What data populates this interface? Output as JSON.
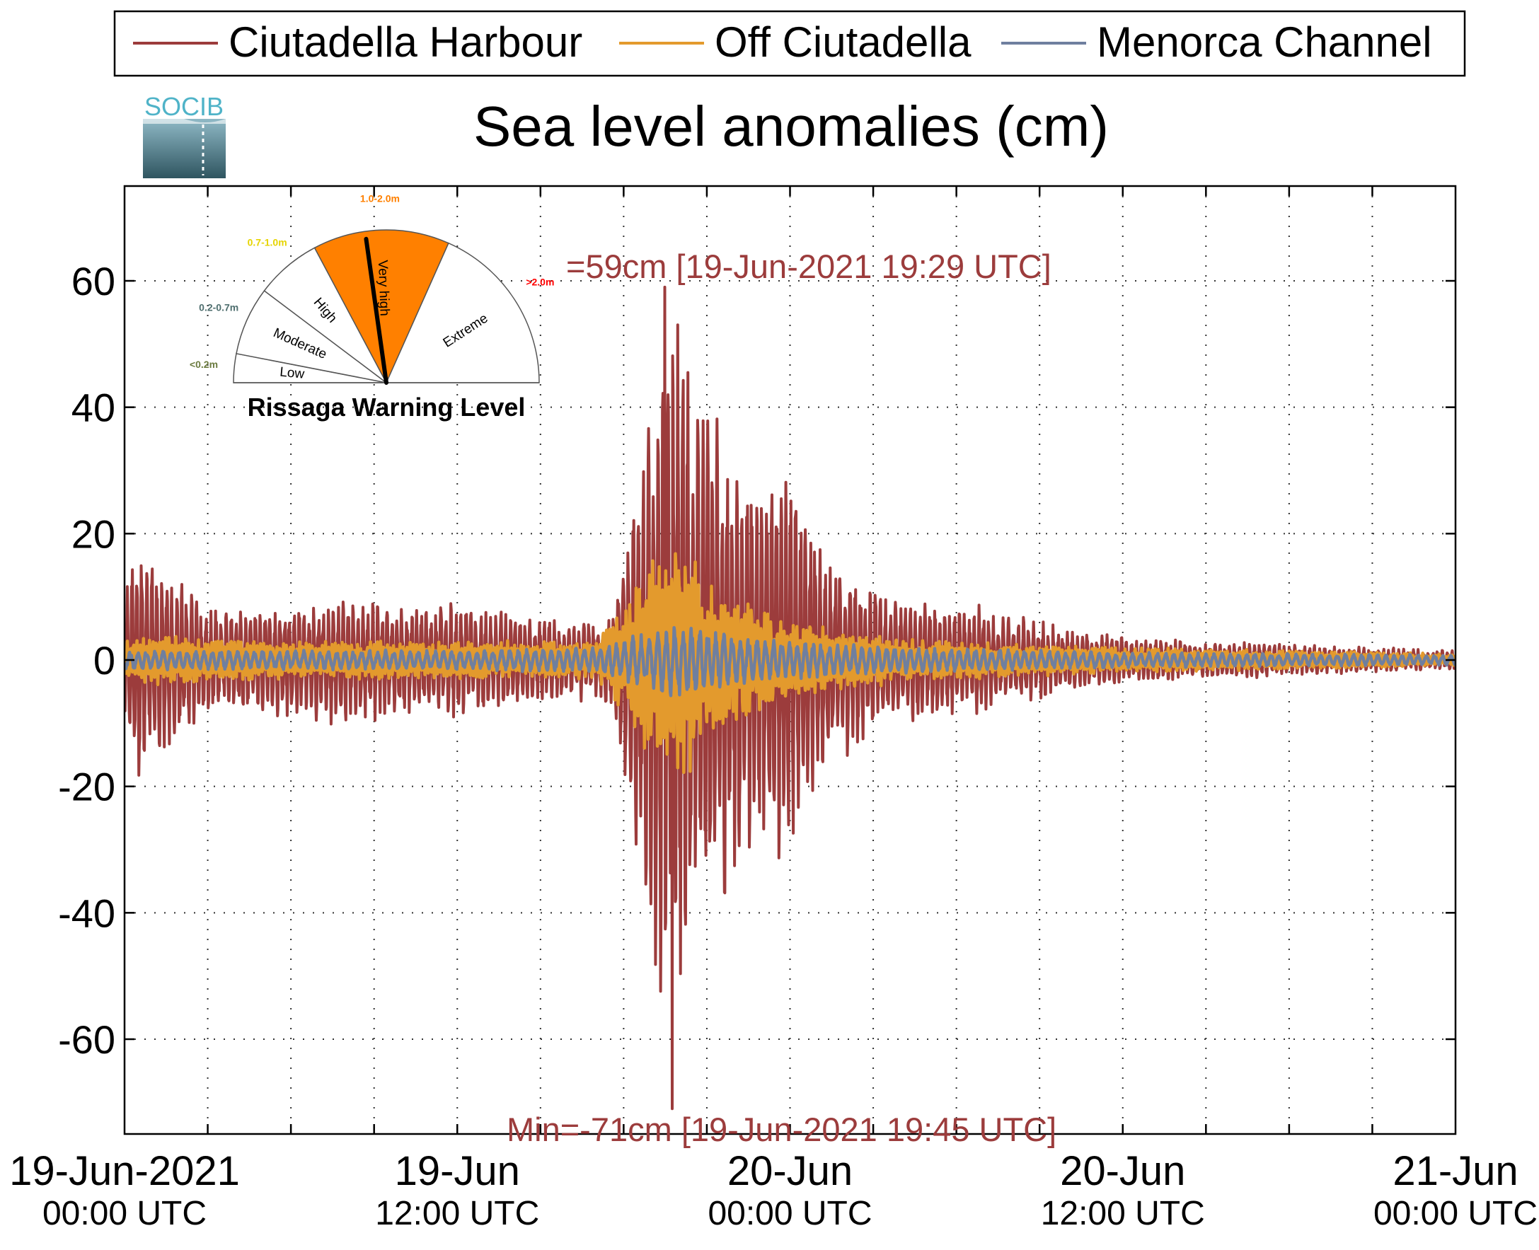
{
  "chart_data": {
    "type": "line",
    "title": "Sea level anomalies (cm)",
    "logo_text": "SOCIB",
    "legend": {
      "placement": "top",
      "entries": [
        "Ciutadella Harbour",
        "Off Ciutadella",
        "Menorca Channel"
      ]
    },
    "ylim": [
      -75,
      75
    ],
    "yticks": [
      60,
      40,
      20,
      0,
      -20,
      -40,
      -60
    ],
    "ytick_labels": [
      "60",
      "40",
      "20",
      "0",
      "-20",
      "-40",
      "-60"
    ],
    "xlim_hours": [
      0,
      48
    ],
    "grid": true,
    "xtick_labels": [
      {
        "date": "19-Jun-2021",
        "time": "00:00 UTC"
      },
      {
        "date": "19-Jun",
        "time": "12:00 UTC"
      },
      {
        "date": "20-Jun",
        "time": "00:00 UTC"
      },
      {
        "date": "20-Jun",
        "time": "12:00 UTC"
      },
      {
        "date": "21-Jun",
        "time": "00:00 UTC"
      }
    ],
    "annotations": {
      "max": "=59cm [19-Jun-2021 19:29 UTC]",
      "min": "Min=-71cm [19-Jun-2021 19:45 UTC]"
    },
    "series": [
      {
        "name": "Ciutadella Harbour",
        "color": "#9c3c3c",
        "amplitude_envelope_cm": [
          [
            0,
            10
          ],
          [
            0.3,
            20
          ],
          [
            1.5,
            15
          ],
          [
            3,
            8
          ],
          [
            6,
            9
          ],
          [
            8,
            10
          ],
          [
            10,
            9
          ],
          [
            12,
            9
          ],
          [
            14,
            7
          ],
          [
            16,
            6
          ],
          [
            17.5,
            7
          ],
          [
            18.2,
            25
          ],
          [
            18.8,
            45
          ],
          [
            19.5,
            60
          ],
          [
            20.5,
            50
          ],
          [
            21.5,
            42
          ],
          [
            22.5,
            33
          ],
          [
            24,
            30
          ],
          [
            25.5,
            18
          ],
          [
            27,
            12
          ],
          [
            28.5,
            10
          ],
          [
            30,
            9
          ],
          [
            32,
            7
          ],
          [
            34,
            5
          ],
          [
            36,
            4
          ],
          [
            39,
            3
          ],
          [
            42,
            2.5
          ],
          [
            45,
            2
          ],
          [
            48,
            1.5
          ]
        ],
        "max": {
          "hour": 19.48,
          "value": 59
        },
        "min": {
          "hour": 19.75,
          "value": -71
        }
      },
      {
        "name": "Off Ciutadella",
        "color": "#e39a2d",
        "amplitude_envelope_cm": [
          [
            0,
            3
          ],
          [
            1,
            4
          ],
          [
            6,
            3
          ],
          [
            12,
            3
          ],
          [
            17,
            3
          ],
          [
            18.2,
            10
          ],
          [
            19,
            16
          ],
          [
            20,
            20
          ],
          [
            21,
            12
          ],
          [
            22,
            10
          ],
          [
            24,
            6
          ],
          [
            27,
            4
          ],
          [
            30,
            3
          ],
          [
            36,
            2
          ],
          [
            42,
            1.5
          ],
          [
            48,
            1
          ]
        ]
      },
      {
        "name": "Menorca Channel",
        "color": "#6f7f9f",
        "amplitude_envelope_cm": [
          [
            0,
            1.5
          ],
          [
            6,
            1.5
          ],
          [
            12,
            1.5
          ],
          [
            17,
            2
          ],
          [
            18.5,
            4
          ],
          [
            20,
            6
          ],
          [
            21,
            5
          ],
          [
            22,
            4
          ],
          [
            24,
            3
          ],
          [
            28,
            2
          ],
          [
            36,
            1.2
          ],
          [
            48,
            0.8
          ]
        ]
      }
    ],
    "rissaga_gauge": {
      "title": "Rissaga Warning Level",
      "current_level": "Very high",
      "levels": [
        {
          "name": "Low",
          "range": "<0.2m",
          "color": "#ffffff",
          "range_color": "#6b7b3f"
        },
        {
          "name": "Moderate",
          "range": "0.2-0.7m",
          "color": "#ffffff",
          "range_color": "#4f6f6f"
        },
        {
          "name": "High",
          "range": "0.7-1.0m",
          "color": "#ffffff",
          "range_color": "#e6d400"
        },
        {
          "name": "Very high",
          "range": "1.0-2.0m",
          "color": "#ff8000",
          "range_color": "#ff8000"
        },
        {
          "name": "Extreme",
          "range": ">2.0m",
          "color": "#ffffff",
          "range_color": "#ff0000"
        }
      ]
    }
  }
}
